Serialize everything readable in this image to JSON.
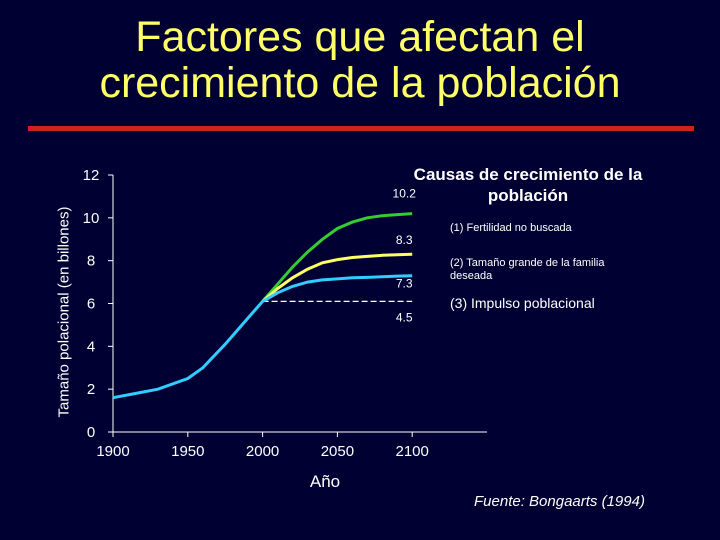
{
  "slide": {
    "title_line1": "Factores que afectan el",
    "title_line2": "crecimiento de la población",
    "source": "Fuente:  Bongaarts (1994)",
    "accent_color": "#cc2222",
    "title_color": "#ffff66",
    "background": "#000033"
  },
  "legend": {
    "title": "Causas de crecimiento de la población",
    "item1": "(1) Fertilidad no buscada",
    "item2": "(2) Tamaño grande de la familia deseada",
    "item3": "(3) Impulso poblacional"
  },
  "chart_data": {
    "type": "line",
    "xlabel": "Año",
    "ylabel": "Tamaño polacional (en billones)",
    "xlim": [
      1900,
      2150
    ],
    "ylim": [
      0,
      12
    ],
    "x_ticks": [
      1900,
      1950,
      2000,
      2050,
      2100
    ],
    "y_ticks": [
      0,
      2,
      4,
      6,
      8,
      10,
      12
    ],
    "grid": false,
    "legend_position": "top-right",
    "history": {
      "color": "#33ccff",
      "x": [
        1900,
        1930,
        1950,
        1960,
        1975,
        1990,
        2000
      ],
      "y": [
        1.6,
        2.0,
        2.5,
        3.0,
        4.1,
        5.3,
        6.1
      ]
    },
    "series": [
      {
        "color": "#33cc33",
        "x": [
          2000,
          2010,
          2020,
          2030,
          2040,
          2050,
          2060,
          2070,
          2080,
          2090,
          2100
        ],
        "y": [
          6.1,
          6.9,
          7.7,
          8.4,
          9.0,
          9.5,
          9.8,
          10.0,
          10.1,
          10.15,
          10.2
        ]
      },
      {
        "color": "#ffff66",
        "x": [
          2000,
          2010,
          2020,
          2030,
          2040,
          2050,
          2060,
          2070,
          2080,
          2090,
          2100
        ],
        "y": [
          6.1,
          6.7,
          7.2,
          7.6,
          7.9,
          8.05,
          8.15,
          8.2,
          8.25,
          8.28,
          8.3
        ]
      },
      {
        "color": "#33ccff",
        "x": [
          2000,
          2010,
          2020,
          2030,
          2040,
          2050,
          2060,
          2070,
          2080,
          2090,
          2100
        ],
        "y": [
          6.1,
          6.5,
          6.8,
          7.0,
          7.1,
          7.15,
          7.2,
          7.22,
          7.25,
          7.28,
          7.3
        ]
      }
    ],
    "reference_line": {
      "y": 6.1,
      "x": [
        2000,
        2100
      ],
      "style": "dashed",
      "color": "#ffffff"
    },
    "annotations": [
      {
        "text": "10.2",
        "x": 2100,
        "y": 10.2
      },
      {
        "text": "8.3",
        "x": 2100,
        "y": 8.3
      },
      {
        "text": "7.3",
        "x": 2100,
        "y": 7.3
      },
      {
        "text": "4.5",
        "x": 2100,
        "y": 6.1
      }
    ]
  }
}
